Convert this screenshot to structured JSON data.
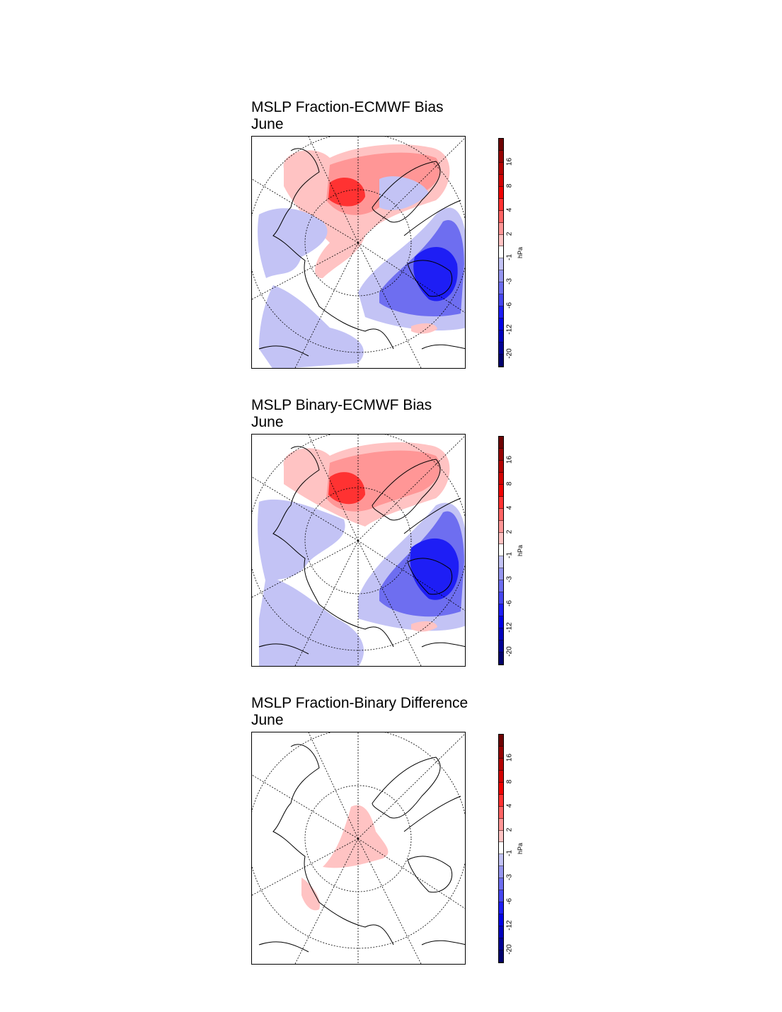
{
  "panels": [
    {
      "title": "MSLP Fraction-ECMWF Bias",
      "subtitle": "June",
      "variant": "fraction"
    },
    {
      "title": "MSLP Binary-ECMWF Bias",
      "subtitle": "June",
      "variant": "binary"
    },
    {
      "title": "MSLP Fraction-Binary Difference",
      "subtitle": "June",
      "variant": "diff"
    }
  ],
  "colorbar": {
    "unit": "hPa",
    "levels": [
      -20,
      -16,
      -12,
      -8,
      -6,
      -4,
      -3,
      -2,
      -1,
      1,
      2,
      3,
      4,
      6,
      8,
      12,
      16,
      20
    ],
    "tick_labels": [
      "-20",
      "-12",
      "-6",
      "-3",
      "-1",
      "2",
      "4",
      "8",
      "16"
    ],
    "colors": [
      "#00006e",
      "#000096",
      "#0000be",
      "#0000e6",
      "#1e1ef5",
      "#4646f0",
      "#6e6ef0",
      "#9696f0",
      "#c3c3f5",
      "#ffffff",
      "#ffc3c3",
      "#ff9696",
      "#ff6464",
      "#ff3232",
      "#f00000",
      "#d20000",
      "#b40000",
      "#960000",
      "#6e0000"
    ]
  }
}
